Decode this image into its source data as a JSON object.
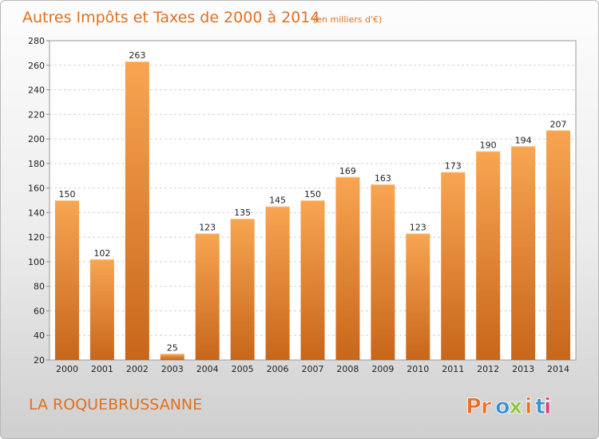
{
  "chart_data": {
    "type": "bar",
    "title": "Autres Impôts et Taxes de 2000 à 2014",
    "subtitle": "(en milliers d'€)",
    "xlabel": "",
    "ylabel": "",
    "categories": [
      "2000",
      "2001",
      "2002",
      "2003",
      "2004",
      "2005",
      "2006",
      "2007",
      "2008",
      "2009",
      "2010",
      "2011",
      "2012",
      "2013",
      "2014"
    ],
    "values": [
      150,
      102,
      263,
      25,
      123,
      135,
      145,
      150,
      169,
      163,
      123,
      173,
      190,
      194,
      207
    ],
    "ylim": [
      20,
      280
    ],
    "yticks": [
      20,
      40,
      60,
      80,
      100,
      120,
      140,
      160,
      180,
      200,
      220,
      240,
      260,
      280
    ],
    "grid": "horizontal-dashed",
    "bar_color": "#f0933a"
  },
  "footer": {
    "commune": "LA ROQUEBRUSSANNE",
    "brand": "Proxiti"
  },
  "colors": {
    "accent": "#e07020",
    "brand_letters": [
      "#e8702a",
      "#e8702a",
      "#3a8fd0",
      "#8cc63f",
      "#e8702a",
      "#3a8fd0",
      "#e23b7a"
    ]
  }
}
